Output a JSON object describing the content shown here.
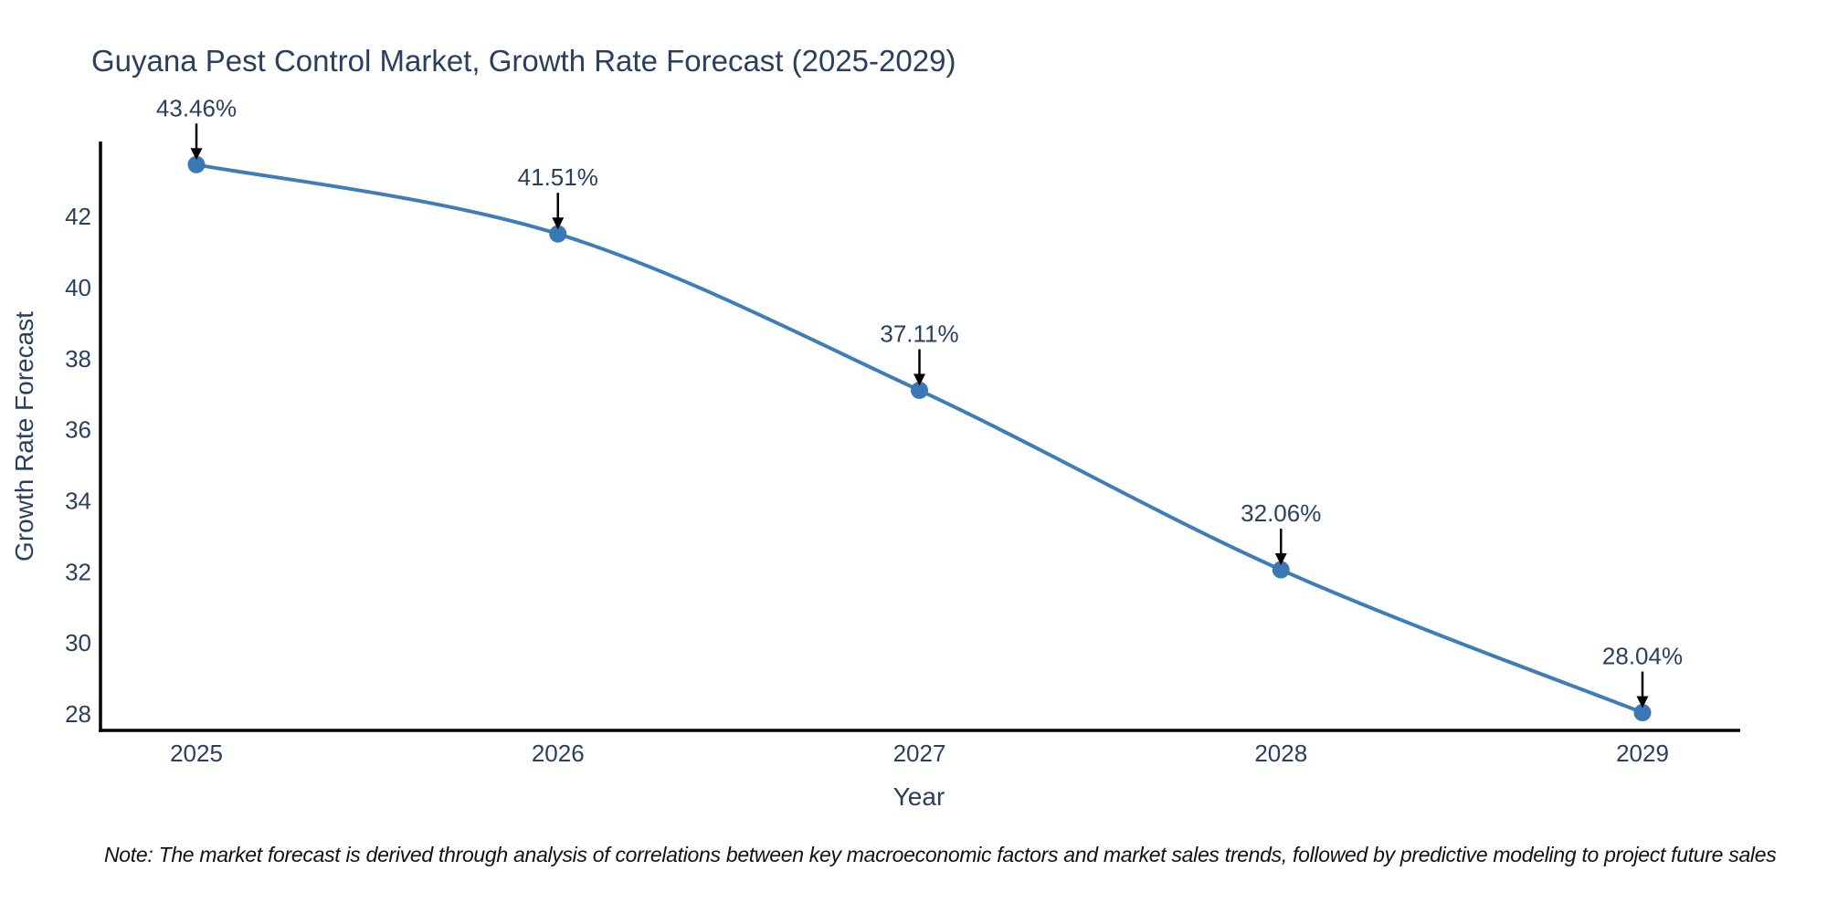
{
  "chart_data": {
    "type": "line",
    "line_shape": "spline",
    "title": "Guyana Pest Control Market, Growth Rate Forecast (2025-2029)",
    "xlabel": "Year",
    "ylabel": "Growth Rate Forecast",
    "x": [
      2025,
      2026,
      2027,
      2028,
      2029
    ],
    "values": [
      43.46,
      41.51,
      37.11,
      32.06,
      28.04
    ],
    "point_labels": [
      "43.46%",
      "41.51%",
      "37.11%",
      "32.06%",
      "28.04%"
    ],
    "yticks": [
      28,
      30,
      32,
      34,
      36,
      38,
      40,
      42
    ],
    "ylim": [
      27.54,
      44.11
    ],
    "grid": false,
    "legend": "none",
    "note": "Note: The market forecast is derived through analysis of correlations between key macroeconomic factors and market sales trends, followed by predictive modeling to project future sales",
    "colors": {
      "line": "#3f7db8",
      "marker": "#3a78b5",
      "annotation_arrow": "#000000",
      "axis_line": "#000000",
      "title_text": "#2a3f5f",
      "tick_text": "#2a3f5f",
      "note_text": "#111111",
      "background": "#ffffff"
    }
  }
}
